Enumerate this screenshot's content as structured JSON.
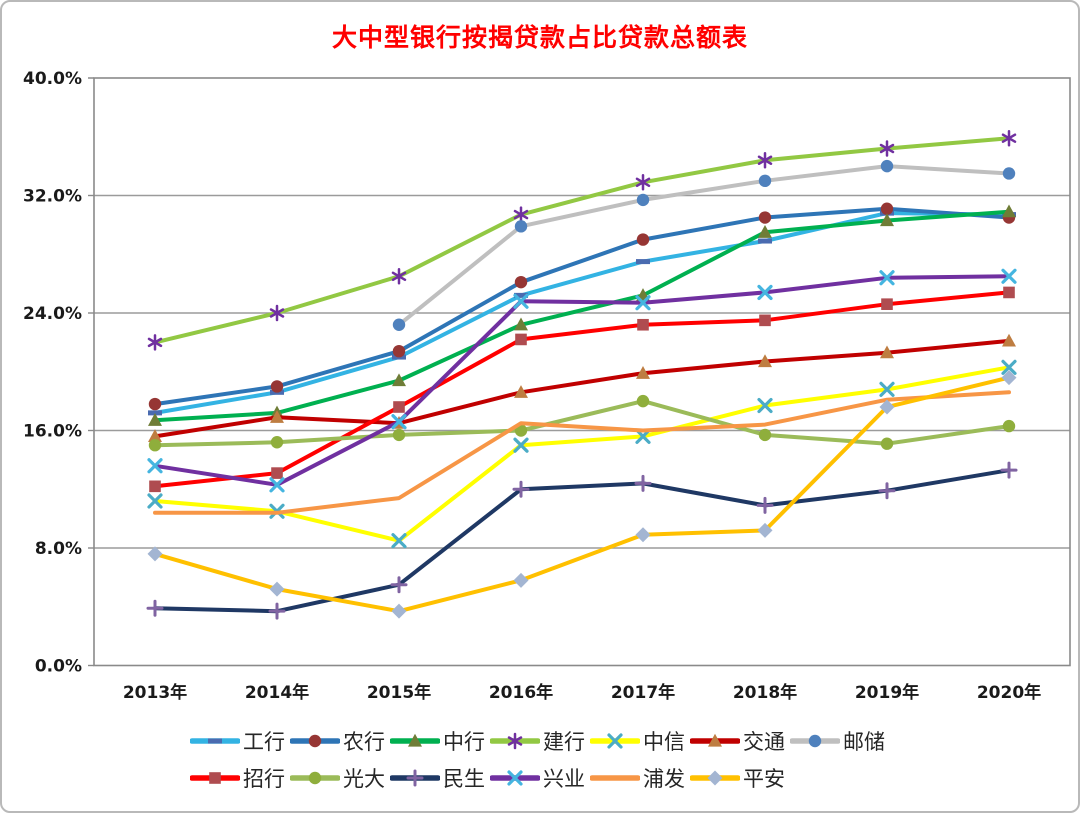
{
  "title": "大中型银行按揭贷款占比贷款总额表",
  "colors": {
    "title": "#ff0000",
    "axis": "#8a8a8a",
    "grid": "#9b9b9b",
    "tick_text": "#1a1a1a",
    "border": "#b9b9b9",
    "background": "#ffffff"
  },
  "chart_data": {
    "type": "line",
    "title": "大中型银行按揭贷款占比贷款总额表",
    "categories": [
      "2013年",
      "2014年",
      "2015年",
      "2016年",
      "2017年",
      "2018年",
      "2019年",
      "2020年"
    ],
    "xlabel": "",
    "ylabel": "",
    "ylim": [
      0,
      40
    ],
    "y_ticks": [
      0,
      8,
      16,
      24,
      32,
      40
    ],
    "y_tick_labels": [
      "0.0%",
      "8.0%",
      "16.0%",
      "24.0%",
      "32.0%",
      "40.0%"
    ],
    "grid": true,
    "legend_position": "bottom",
    "legend_row_split": 7,
    "series": [
      {
        "key": "icbc",
        "name": "工行",
        "color": "#33b3e3",
        "marker": "dash",
        "marker_color": "#4a6bb0",
        "values": [
          17.2,
          18.6,
          21.0,
          25.2,
          27.5,
          28.9,
          30.8,
          30.7
        ]
      },
      {
        "key": "abc",
        "name": "农行",
        "color": "#2e75b6",
        "marker": "circle",
        "marker_color": "#963634",
        "values": [
          17.8,
          19.0,
          21.4,
          26.1,
          29.0,
          30.5,
          31.1,
          30.5
        ]
      },
      {
        "key": "boc",
        "name": "中行",
        "color": "#00b050",
        "marker": "triangle",
        "marker_color": "#6f7d37",
        "values": [
          16.7,
          17.2,
          19.4,
          23.2,
          25.2,
          29.5,
          30.3,
          30.9
        ]
      },
      {
        "key": "ccb",
        "name": "建行",
        "color": "#92c843",
        "marker": "asterisk",
        "marker_color": "#7030a0",
        "values": [
          22.0,
          24.0,
          26.5,
          30.7,
          32.9,
          34.4,
          35.2,
          35.9
        ]
      },
      {
        "key": "citic",
        "name": "中信",
        "color": "#ffff00",
        "marker": "x",
        "marker_color": "#4bacc6",
        "values": [
          11.2,
          10.5,
          8.5,
          15.0,
          15.6,
          17.7,
          18.8,
          20.3
        ]
      },
      {
        "key": "bocom",
        "name": "交通",
        "color": "#c00000",
        "marker": "triangle",
        "marker_color": "#be7d41",
        "values": [
          15.6,
          16.9,
          16.5,
          18.6,
          19.9,
          20.7,
          21.3,
          22.1
        ]
      },
      {
        "key": "psbc",
        "name": "邮储",
        "color": "#bfbfbf",
        "marker": "circle",
        "marker_color": "#4f81bd",
        "values": [
          null,
          null,
          23.2,
          29.9,
          31.7,
          33.0,
          34.0,
          33.5
        ]
      },
      {
        "key": "cmb",
        "name": "招行",
        "color": "#ff0000",
        "marker": "square",
        "marker_color": "#af4c50",
        "values": [
          12.2,
          13.1,
          17.6,
          22.2,
          23.2,
          23.5,
          24.6,
          25.4
        ]
      },
      {
        "key": "ceb",
        "name": "光大",
        "color": "#9bbb59",
        "marker": "circle",
        "marker_color": "#8fae3c",
        "values": [
          15.0,
          15.2,
          15.7,
          16.0,
          18.0,
          15.7,
          15.1,
          16.3
        ]
      },
      {
        "key": "minsheng",
        "name": "民生",
        "color": "#1f3864",
        "marker": "plus",
        "marker_color": "#8064a2",
        "values": [
          3.9,
          3.7,
          5.5,
          12.0,
          12.4,
          10.9,
          11.9,
          13.3
        ]
      },
      {
        "key": "cib",
        "name": "兴业",
        "color": "#7030a0",
        "marker": "x",
        "marker_color": "#45b5e0",
        "values": [
          13.6,
          12.3,
          16.6,
          24.8,
          24.7,
          25.4,
          26.4,
          26.5
        ]
      },
      {
        "key": "spdb",
        "name": "浦发",
        "color": "#f79646",
        "marker": "none",
        "marker_color": "#f79646",
        "values": [
          10.4,
          10.4,
          11.4,
          16.5,
          16.0,
          16.4,
          18.1,
          18.6
        ]
      },
      {
        "key": "pingan",
        "name": "平安",
        "color": "#ffc000",
        "marker": "diamond",
        "marker_color": "#a3b5d2",
        "values": [
          7.6,
          5.2,
          3.7,
          5.8,
          8.9,
          9.2,
          17.6,
          19.6
        ]
      }
    ]
  }
}
